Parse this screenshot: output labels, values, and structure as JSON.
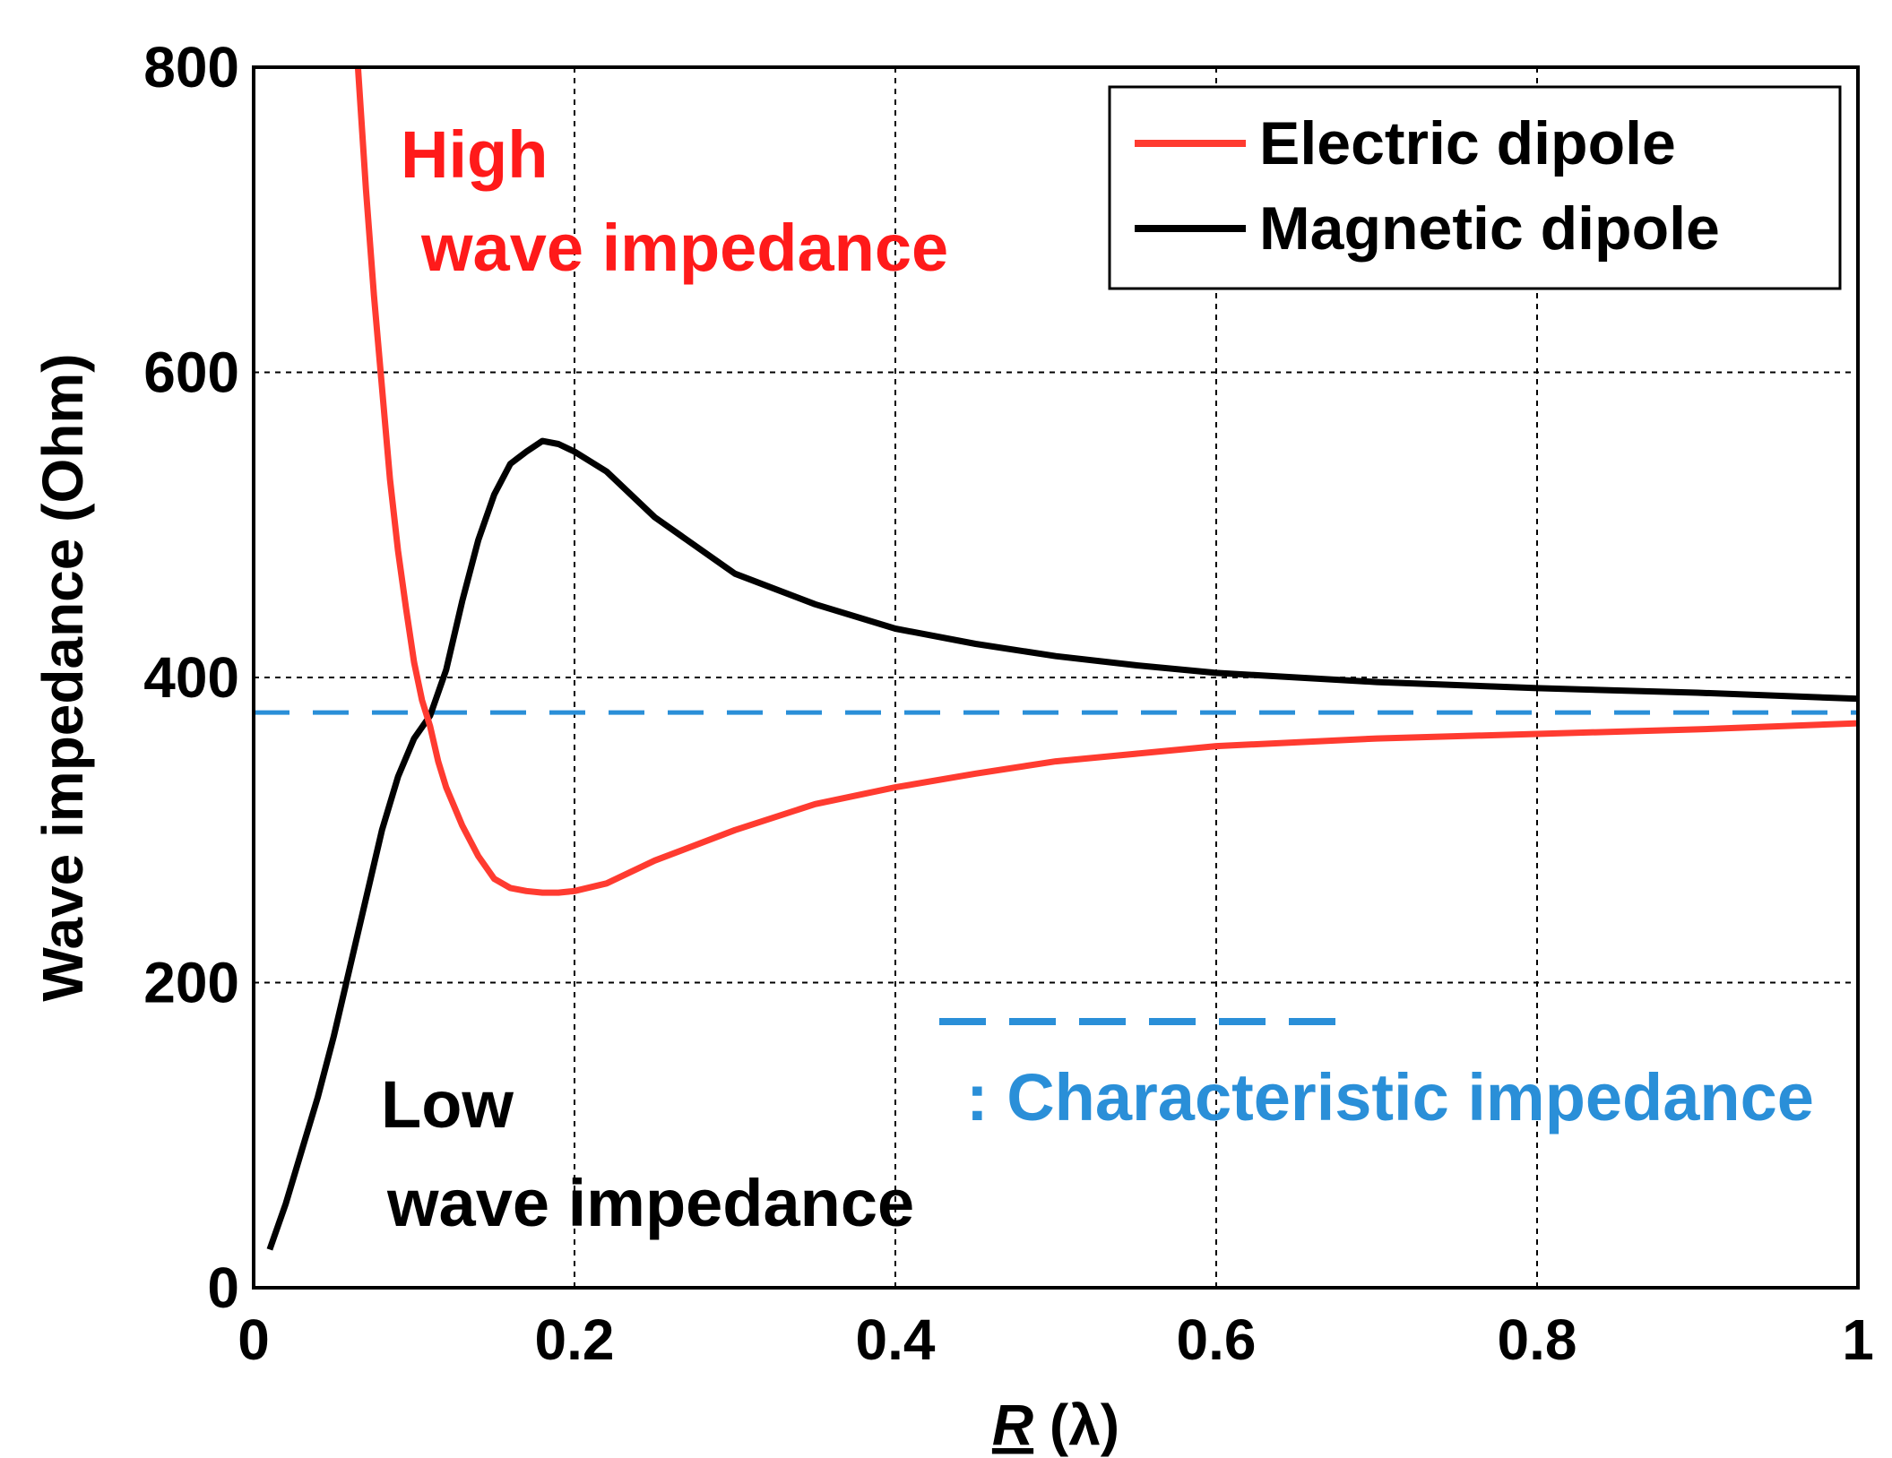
{
  "chart_data": {
    "type": "line",
    "title": "",
    "xlabel": "R (λ)",
    "xlabel_main": "R",
    "xlabel_unit": " (λ)",
    "ylabel": "Wave impedance (Ohm)",
    "xlim": [
      0,
      1
    ],
    "ylim": [
      0,
      800
    ],
    "grid": true,
    "legend_position": "top-right",
    "x_ticks": [
      0,
      0.2,
      0.4,
      0.6,
      0.8,
      1
    ],
    "x_tick_labels": [
      "0",
      "0.2",
      "0.4",
      "0.6",
      "0.8",
      "1"
    ],
    "y_ticks": [
      0,
      200,
      400,
      600,
      800
    ],
    "y_tick_labels": [
      "0",
      "200",
      "400",
      "600",
      "800"
    ],
    "series": [
      {
        "name": "Electric dipole",
        "color": "#ff3b30",
        "x": [
          0.065,
          0.07,
          0.075,
          0.08,
          0.085,
          0.09,
          0.095,
          0.1,
          0.105,
          0.11,
          0.115,
          0.12,
          0.13,
          0.14,
          0.15,
          0.16,
          0.17,
          0.18,
          0.19,
          0.2,
          0.22,
          0.25,
          0.3,
          0.35,
          0.4,
          0.45,
          0.5,
          0.55,
          0.6,
          0.7,
          0.8,
          0.9,
          1.0
        ],
        "y": [
          800,
          720,
          650,
          590,
          530,
          483,
          445,
          410,
          385,
          368,
          345,
          328,
          303,
          283,
          268,
          262,
          260,
          259,
          259,
          260,
          265,
          280,
          300,
          317,
          328,
          337,
          345,
          350,
          355,
          360,
          363,
          366,
          370
        ]
      },
      {
        "name": "Magnetic dipole",
        "color": "#000000",
        "x": [
          0.01,
          0.02,
          0.03,
          0.04,
          0.05,
          0.06,
          0.07,
          0.08,
          0.09,
          0.1,
          0.11,
          0.12,
          0.13,
          0.14,
          0.15,
          0.16,
          0.17,
          0.18,
          0.19,
          0.2,
          0.22,
          0.25,
          0.3,
          0.35,
          0.4,
          0.45,
          0.5,
          0.55,
          0.6,
          0.7,
          0.8,
          0.9,
          1.0
        ],
        "y": [
          25,
          55,
          90,
          125,
          165,
          210,
          255,
          300,
          335,
          360,
          375,
          405,
          450,
          490,
          520,
          540,
          548,
          555,
          553,
          548,
          535,
          505,
          468,
          448,
          432,
          422,
          414,
          408,
          403,
          397,
          393,
          390,
          386
        ]
      },
      {
        "name": "Characteristic impedance",
        "color": "#2a8fd8",
        "style": "dashed",
        "x": [
          0,
          1
        ],
        "y": [
          377,
          377
        ]
      }
    ],
    "legend": [
      "Electric dipole",
      "Magnetic dipole"
    ],
    "annotations": {
      "high_line1": "High",
      "high_line2": "wave impedance",
      "low_line1": "Low",
      "low_line2": "wave impedance",
      "characteristic": ": Characteristic impedance"
    }
  },
  "colors": {
    "electric": "#ff3b30",
    "magnetic": "#000000",
    "characteristic": "#2a8fd8",
    "high_text": "#ff1a1a",
    "low_text": "#000000"
  }
}
